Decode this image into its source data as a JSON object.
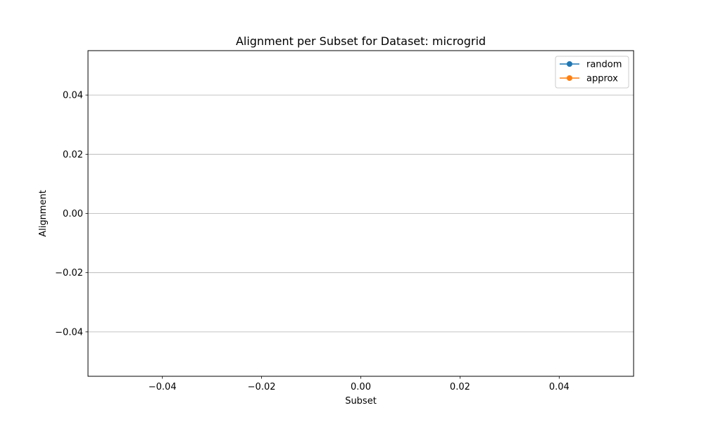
{
  "chart_data": {
    "type": "line",
    "title": "Alignment per Subset for Dataset: microgrid",
    "xlabel": "Subset",
    "ylabel": "Alignment",
    "xlim": [
      -0.055,
      0.055
    ],
    "ylim": [
      -0.055,
      0.055
    ],
    "xticks": [
      -0.04,
      -0.02,
      0.0,
      0.02,
      0.04
    ],
    "xtick_labels": [
      "−0.04",
      "−0.02",
      "0.00",
      "0.02",
      "0.04"
    ],
    "yticks": [
      -0.04,
      -0.02,
      0.0,
      0.02,
      0.04
    ],
    "ytick_labels": [
      "−0.04",
      "−0.02",
      "0.00",
      "0.02",
      "0.04"
    ],
    "grid": "y",
    "legend": "top-right",
    "series": [
      {
        "name": "random",
        "color": "#1f77b4",
        "marker": "circle",
        "x": [],
        "y": []
      },
      {
        "name": "approx",
        "color": "#ff7f0e",
        "marker": "circle",
        "x": [],
        "y": []
      }
    ]
  }
}
